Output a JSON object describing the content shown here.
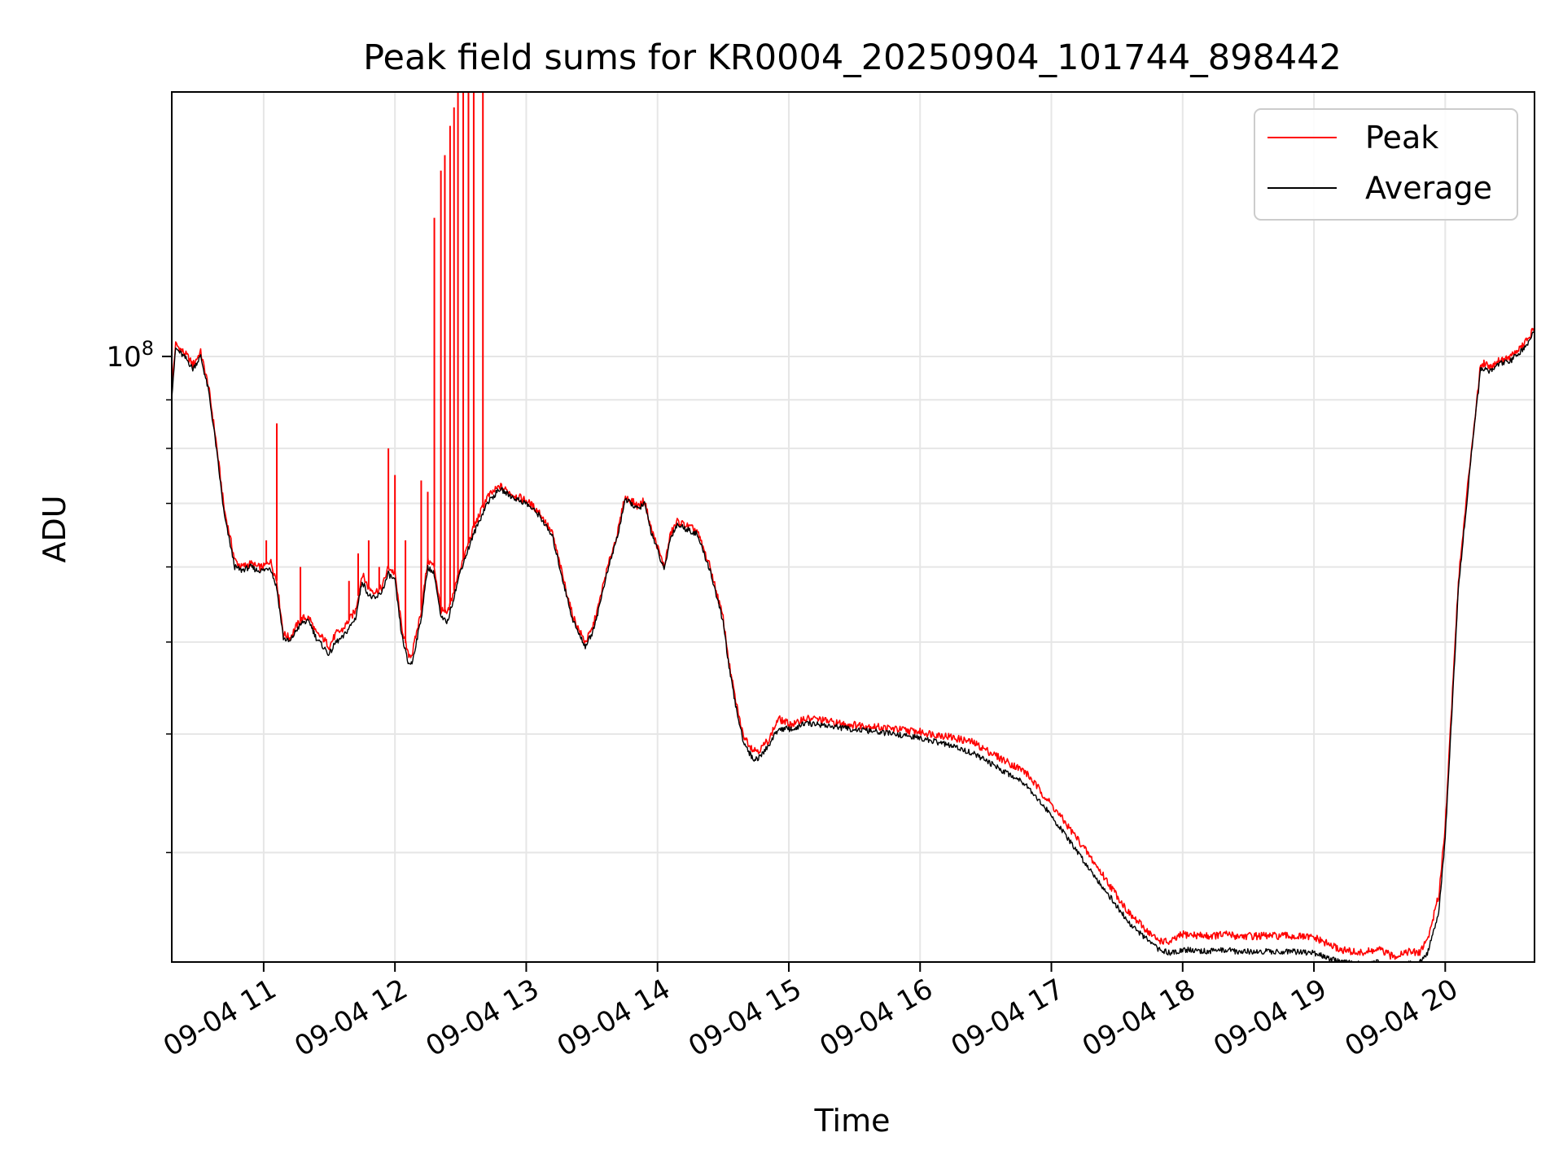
{
  "chart_data": {
    "type": "line",
    "title": "Peak field sums for KR0004_20250904_101744_898442",
    "xlabel": "Time",
    "ylabel": "ADU",
    "x_unit": "hour of 2025-09-04",
    "xlim": [
      10.3,
      20.68
    ],
    "ylim": [
      23000000,
      190000000
    ],
    "y_scale": "log",
    "y_major_tick": {
      "value": 100000000,
      "label": "10^8"
    },
    "y_minor_ticks": [
      30000000,
      40000000,
      50000000,
      60000000,
      70000000,
      80000000,
      90000000,
      200000000
    ],
    "x_ticks": [
      {
        "value": 11,
        "label": "09-04 11"
      },
      {
        "value": 12,
        "label": "09-04 12"
      },
      {
        "value": 13,
        "label": "09-04 13"
      },
      {
        "value": 14,
        "label": "09-04 14"
      },
      {
        "value": 15,
        "label": "09-04 15"
      },
      {
        "value": 16,
        "label": "09-04 16"
      },
      {
        "value": 17,
        "label": "09-04 17"
      },
      {
        "value": 18,
        "label": "09-04 18"
      },
      {
        "value": 19,
        "label": "09-04 19"
      },
      {
        "value": 20,
        "label": "09-04 20"
      }
    ],
    "grid": true,
    "legend_position": "top-right",
    "series": [
      {
        "name": "Peak",
        "color": "#ff0000",
        "x": [
          10.3,
          10.33,
          10.42,
          10.46,
          10.52,
          10.58,
          10.63,
          10.7,
          10.78,
          10.83,
          10.9,
          10.95,
          11.0,
          11.05,
          11.1,
          11.15,
          11.2,
          11.25,
          11.3,
          11.35,
          11.4,
          11.45,
          11.5,
          11.55,
          11.6,
          11.7,
          11.75,
          11.8,
          11.85,
          11.9,
          11.95,
          12.0,
          12.05,
          12.1,
          12.13,
          12.2,
          12.25,
          12.3,
          12.35,
          12.4,
          12.5,
          12.6,
          12.7,
          12.8,
          12.9,
          13.0,
          13.05,
          13.1,
          13.2,
          13.3,
          13.35,
          13.4,
          13.45,
          13.5,
          13.55,
          13.6,
          13.65,
          13.7,
          13.75,
          13.8,
          13.85,
          13.9,
          13.95,
          14.0,
          14.05,
          14.1,
          14.15,
          14.2,
          14.25,
          14.3,
          14.4,
          14.5,
          14.55,
          14.6,
          14.65,
          14.7,
          14.73,
          14.78,
          14.85,
          14.92,
          15.0,
          15.06,
          15.1,
          15.2,
          15.4,
          15.6,
          15.8,
          16.0,
          16.2,
          16.4,
          16.6,
          16.8,
          17.0,
          17.2,
          17.4,
          17.6,
          17.8,
          17.9,
          18.0,
          18.2,
          18.35,
          18.4,
          18.45,
          18.6,
          18.8,
          19.0,
          19.2,
          19.35,
          19.5,
          19.6,
          19.7,
          19.8,
          19.87,
          19.95,
          20.0,
          20.05,
          20.1,
          20.2,
          20.27,
          20.3,
          20.35,
          20.4,
          20.5,
          20.6,
          20.68
        ],
        "y": [
          93000000,
          103000000,
          100000000,
          98000000,
          101000000,
          93000000,
          83000000,
          69000000,
          61000000,
          60000000,
          60500000,
          60000000,
          60000000,
          61000000,
          58000000,
          51000000,
          50500000,
          52000000,
          53000000,
          53000000,
          51000000,
          50500000,
          49500000,
          51000000,
          51500000,
          54000000,
          59000000,
          57000000,
          56500000,
          57000000,
          60000000,
          59000000,
          52000000,
          48500000,
          48500000,
          54000000,
          61000000,
          60000000,
          54000000,
          53500000,
          60000000,
          66000000,
          71000000,
          73000000,
          71500000,
          70500000,
          69500000,
          68500000,
          65000000,
          57000000,
          53500000,
          51500000,
          50000000,
          51500000,
          54500000,
          58500000,
          62000000,
          65500000,
          71000000,
          70500000,
          69500000,
          70500000,
          66000000,
          63000000,
          60000000,
          65000000,
          67000000,
          66500000,
          66000000,
          65500000,
          60000000,
          53000000,
          47000000,
          43000000,
          40000000,
          39000000,
          38500000,
          38500000,
          39500000,
          41500000,
          41000000,
          41000000,
          41500000,
          41500000,
          41000000,
          40800000,
          40500000,
          40200000,
          39800000,
          39200000,
          37800000,
          36500000,
          33700000,
          31000000,
          28300000,
          25800000,
          24300000,
          24100000,
          24600000,
          24500000,
          24600000,
          24500000,
          24500000,
          24500000,
          24500000,
          24400000,
          23700000,
          23500000,
          23700000,
          23300000,
          23600000,
          23500000,
          24400000,
          27000000,
          32000000,
          43000000,
          58000000,
          80000000,
          98000000,
          98500000,
          97500000,
          99000000,
          100000000,
          103000000,
          107000000
        ],
        "spikes": [
          [
            11.02,
            64000000
          ],
          [
            11.1,
            85000000
          ],
          [
            11.28,
            60000000
          ],
          [
            11.65,
            58000000
          ],
          [
            11.72,
            62000000
          ],
          [
            11.8,
            64000000
          ],
          [
            11.88,
            60000000
          ],
          [
            11.95,
            80000000
          ],
          [
            12.0,
            75000000
          ],
          [
            12.08,
            64000000
          ],
          [
            12.2,
            74000000
          ],
          [
            12.25,
            72000000
          ],
          [
            12.3,
            140000000
          ],
          [
            12.35,
            157000000
          ],
          [
            12.38,
            163000000
          ],
          [
            12.42,
            175000000
          ],
          [
            12.45,
            183000000
          ],
          [
            12.48,
            190000000
          ],
          [
            12.52,
            190000000
          ],
          [
            12.56,
            190000000
          ],
          [
            12.6,
            190000000
          ],
          [
            12.67,
            190000000
          ]
        ]
      },
      {
        "name": "Average",
        "color": "#000000",
        "x": [
          10.3,
          10.33,
          10.42,
          10.46,
          10.52,
          10.58,
          10.63,
          10.7,
          10.78,
          10.83,
          10.9,
          10.95,
          11.0,
          11.05,
          11.1,
          11.15,
          11.2,
          11.25,
          11.3,
          11.35,
          11.4,
          11.45,
          11.5,
          11.55,
          11.6,
          11.7,
          11.75,
          11.8,
          11.85,
          11.9,
          11.95,
          12.0,
          12.05,
          12.1,
          12.13,
          12.2,
          12.25,
          12.3,
          12.35,
          12.4,
          12.5,
          12.6,
          12.7,
          12.8,
          12.9,
          13.0,
          13.05,
          13.1,
          13.2,
          13.3,
          13.35,
          13.4,
          13.45,
          13.5,
          13.55,
          13.6,
          13.65,
          13.7,
          13.75,
          13.8,
          13.85,
          13.9,
          13.95,
          14.0,
          14.05,
          14.1,
          14.15,
          14.2,
          14.25,
          14.3,
          14.4,
          14.5,
          14.55,
          14.6,
          14.65,
          14.7,
          14.73,
          14.78,
          14.85,
          14.92,
          15.0,
          15.06,
          15.1,
          15.2,
          15.4,
          15.6,
          15.8,
          16.0,
          16.2,
          16.4,
          16.6,
          16.8,
          17.0,
          17.2,
          17.4,
          17.6,
          17.8,
          17.9,
          18.0,
          18.2,
          18.35,
          18.4,
          18.45,
          18.6,
          18.8,
          19.0,
          19.2,
          19.35,
          19.5,
          19.6,
          19.7,
          19.8,
          19.87,
          19.95,
          20.0,
          20.05,
          20.1,
          20.2,
          20.27,
          20.3,
          20.35,
          20.4,
          20.5,
          20.6,
          20.68
        ],
        "y": [
          91000000,
          102000000,
          99000000,
          97000000,
          100000000,
          92000000,
          82000000,
          68000000,
          60000000,
          59500000,
          60000000,
          59500000,
          59500000,
          60000000,
          57000000,
          50500000,
          50000000,
          51500000,
          52500000,
          52500000,
          50500000,
          49500000,
          48500000,
          50000000,
          50500000,
          53000000,
          58000000,
          56000000,
          55500000,
          56500000,
          59000000,
          58000000,
          51000000,
          47500000,
          47500000,
          53000000,
          60000000,
          59000000,
          53000000,
          52500000,
          59500000,
          65000000,
          70000000,
          72500000,
          71000000,
          70000000,
          69000000,
          68000000,
          64500000,
          56500000,
          53000000,
          51000000,
          49500000,
          51000000,
          54000000,
          58000000,
          61500000,
          65000000,
          70500000,
          70000000,
          69000000,
          70000000,
          65500000,
          62500000,
          59500000,
          64500000,
          66500000,
          66000000,
          65500000,
          65000000,
          59500000,
          52500000,
          46500000,
          42500000,
          39500000,
          38200000,
          37600000,
          37800000,
          39000000,
          40500000,
          40500000,
          40500000,
          41000000,
          41000000,
          40600000,
          40300000,
          40000000,
          39600000,
          39000000,
          38200000,
          36800000,
          35500000,
          32800000,
          30000000,
          27500000,
          25200000,
          23800000,
          23500000,
          23700000,
          23600000,
          23700000,
          23600000,
          23600000,
          23600000,
          23600000,
          23500000,
          23000000,
          22900000,
          23000000,
          22800000,
          22900000,
          22900000,
          23600000,
          26000000,
          31000000,
          42000000,
          57000000,
          79000000,
          97000000,
          97000000,
          96500000,
          98000000,
          99000000,
          102000000,
          106000000
        ]
      }
    ]
  }
}
